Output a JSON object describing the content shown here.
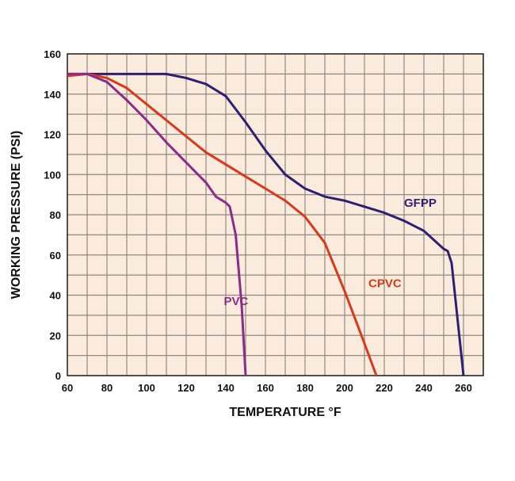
{
  "chart_data": {
    "type": "line",
    "title": "",
    "xlabel": "TEMPERATURE °F",
    "ylabel": "WORKING PRESSURE (PSI)",
    "xlim": [
      60,
      270
    ],
    "ylim": [
      0,
      160
    ],
    "xticks": [
      60,
      80,
      100,
      120,
      140,
      160,
      180,
      200,
      220,
      240,
      260
    ],
    "yticks": [
      0,
      20,
      40,
      60,
      80,
      100,
      120,
      140,
      160
    ],
    "grid": true,
    "grid_step": {
      "x": 10,
      "y": 10
    },
    "plot_background": "#fbebdc",
    "series": [
      {
        "name": "GFPP",
        "color": "#2e1f73",
        "label_at": [
          230,
          84
        ],
        "x": [
          60,
          110,
          120,
          130,
          140,
          150,
          160,
          170,
          180,
          190,
          200,
          210,
          220,
          230,
          240,
          250,
          252,
          254,
          260
        ],
        "y": [
          150,
          150,
          148,
          145,
          139,
          126,
          112,
          100,
          93,
          89,
          87,
          84,
          81,
          77,
          72,
          63,
          62,
          56,
          0
        ]
      },
      {
        "name": "CPVC",
        "color": "#d8391a",
        "label_at": [
          212,
          44
        ],
        "x": [
          60,
          70,
          80,
          90,
          100,
          110,
          120,
          130,
          140,
          150,
          160,
          170,
          180,
          190,
          200,
          210,
          216
        ],
        "y": [
          149,
          150,
          148,
          143,
          135,
          127,
          119,
          111,
          105,
          99,
          93,
          87,
          79,
          66,
          42,
          16,
          0
        ]
      },
      {
        "name": "PVC",
        "color": "#8b2b8c",
        "label_at": [
          139,
          35
        ],
        "x": [
          60,
          70,
          80,
          90,
          100,
          110,
          120,
          130,
          135,
          140,
          142,
          145,
          148,
          150
        ],
        "y": [
          150,
          150,
          146,
          137,
          127,
          116,
          106,
          96,
          89,
          86,
          84,
          70,
          35,
          0
        ]
      }
    ]
  }
}
